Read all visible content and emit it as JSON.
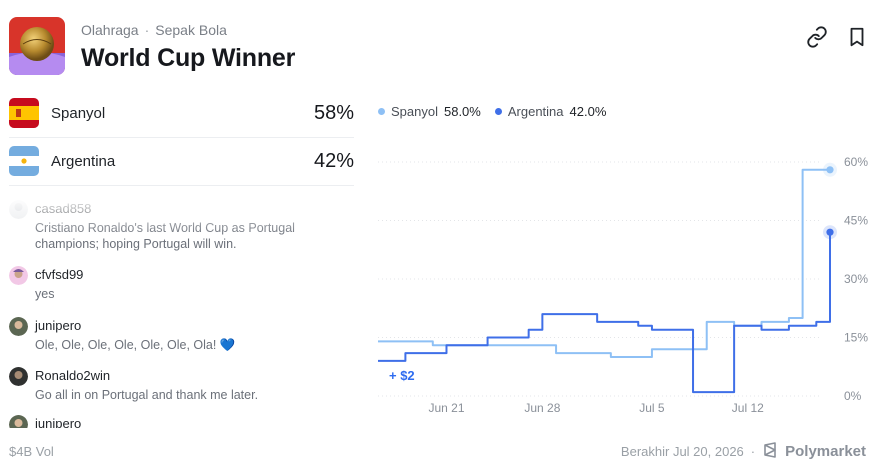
{
  "header": {
    "breadcrumb": [
      "Olahraga",
      "Sepak Bola"
    ],
    "title": "World Cup Winner",
    "icons": [
      "link-icon",
      "bookmark-icon"
    ]
  },
  "outcomes": [
    {
      "name": "Spanyol",
      "percent": "58%",
      "flag": "spain-flag"
    },
    {
      "name": "Argentina",
      "percent": "42%",
      "flag": "argentina-flag"
    }
  ],
  "comments": [
    {
      "user": "casad858",
      "text": "Cristiano Ronaldo's last World Cup as Portugal champions; hoping Portugal will win."
    },
    {
      "user": "cfvfsd99",
      "text": "yes"
    },
    {
      "user": "junipero",
      "text": "Ole, Ole, Ole, Ole, Ole, Ole, Ola! 💙"
    },
    {
      "user": "Ronaldo2win",
      "text": "Go all in on Portugal and thank me later."
    },
    {
      "user": "junipero",
      "text": ""
    }
  ],
  "legend": [
    {
      "name": "Spanyol",
      "value": "58.0%",
      "color": "#8ec0f5"
    },
    {
      "name": "Argentina",
      "value": "42.0%",
      "color": "#3f6fe8"
    }
  ],
  "trade_label": "+ $2",
  "footer": {
    "volume": "$4B Vol",
    "end_date": "Berakhir Jul 20, 2026",
    "brand": "Polymarket"
  },
  "chart_data": {
    "type": "line",
    "x_ticks": [
      "Jun 21",
      "Jun 28",
      "Jul 5",
      "Jul 12"
    ],
    "y_ticks": [
      "60%",
      "45%",
      "30%",
      "15%",
      "0%"
    ],
    "ylim": [
      0,
      60
    ],
    "grid": true,
    "legend_position": "top-left",
    "series": [
      {
        "name": "Spanyol",
        "color": "#8ec0f5",
        "x": [
          "Jun 16",
          "Jun 20",
          "Jun 24",
          "Jun 27",
          "Jun 29",
          "Jul 2",
          "Jul 4",
          "Jul 5",
          "Jul 7",
          "Jul 9",
          "Jul 11",
          "Jul 13",
          "Jul 15",
          "Jul 16",
          "Jul 18"
        ],
        "values": [
          14,
          13,
          13,
          13,
          11,
          10,
          10,
          12,
          12,
          19,
          18,
          19,
          20,
          58,
          58
        ]
      },
      {
        "name": "Argentina",
        "color": "#3f6fe8",
        "x": [
          "Jun 16",
          "Jun 18",
          "Jun 21",
          "Jun 24",
          "Jun 27",
          "Jun 28",
          "Jul 1",
          "Jul 4",
          "Jul 5",
          "Jul 7",
          "Jul 8",
          "Jul 11",
          "Jul 13",
          "Jul 15",
          "Jul 17",
          "Jul 18"
        ],
        "values": [
          9,
          11,
          13,
          15,
          17,
          21,
          19,
          18,
          17,
          17,
          1,
          18,
          17,
          18,
          19,
          42
        ]
      }
    ]
  }
}
